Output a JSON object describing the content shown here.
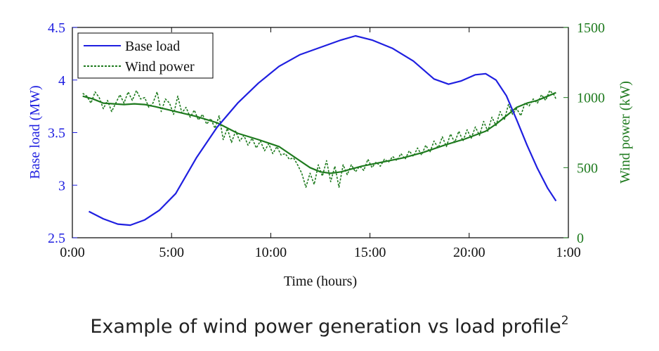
{
  "chart_data": {
    "type": "line",
    "xlabel": "Time (hours)",
    "x_ticks": [
      "0:00",
      "5:00",
      "10:00",
      "15:00",
      "20:00",
      "1:00"
    ],
    "x_range_hours": [
      0,
      24
    ],
    "y_left": {
      "label": "Base load (MW)",
      "range": [
        2.5,
        4.5
      ],
      "ticks": [
        "2.5",
        "3",
        "3.5",
        "4",
        "4.5"
      ],
      "color": "#1f1fe0"
    },
    "y_right": {
      "label": "Wind power (kW)",
      "range": [
        0,
        1500
      ],
      "ticks": [
        "0",
        "500",
        "1000",
        "1500"
      ],
      "color": "#1e7a1e"
    },
    "legend": {
      "placement": "top-left",
      "entries": [
        "Base load",
        "Wind power"
      ]
    },
    "series": [
      {
        "name": "Base load",
        "axis": "left",
        "style": "solid",
        "color": "#1f1fe0",
        "x": [
          0.8,
          1.5,
          2.2,
          2.8,
          3.5,
          4.2,
          5.0,
          6.0,
          7.0,
          8.0,
          9.0,
          10.0,
          11.0,
          12.0,
          13.0,
          13.7,
          14.5,
          15.5,
          16.5,
          17.5,
          18.2,
          18.8,
          19.5,
          20.0,
          20.5,
          21.0,
          21.5,
          22.0,
          22.5,
          23.0,
          23.4
        ],
        "values": [
          2.75,
          2.68,
          2.63,
          2.62,
          2.67,
          2.76,
          2.92,
          3.26,
          3.55,
          3.78,
          3.97,
          4.13,
          4.24,
          4.31,
          4.38,
          4.42,
          4.38,
          4.3,
          4.18,
          4.01,
          3.96,
          3.99,
          4.05,
          4.06,
          4.0,
          3.85,
          3.62,
          3.38,
          3.16,
          2.97,
          2.85
        ]
      },
      {
        "name": "Wind power",
        "axis": "right",
        "style": "dashed",
        "color": "#1e7a1e",
        "x": [
          0.5,
          0.7,
          0.9,
          1.1,
          1.3,
          1.5,
          1.7,
          1.9,
          2.1,
          2.3,
          2.5,
          2.7,
          2.9,
          3.1,
          3.3,
          3.5,
          3.7,
          3.9,
          4.1,
          4.3,
          4.5,
          4.7,
          4.9,
          5.1,
          5.3,
          5.5,
          5.7,
          5.9,
          6.1,
          6.3,
          6.5,
          6.7,
          6.9,
          7.1,
          7.3,
          7.5,
          7.7,
          7.9,
          8.1,
          8.3,
          8.5,
          8.7,
          8.9,
          9.1,
          9.3,
          9.5,
          9.7,
          9.9,
          10.1,
          10.3,
          10.5,
          10.7,
          10.9,
          11.1,
          11.3,
          11.5,
          11.7,
          11.9,
          12.1,
          12.3,
          12.5,
          12.7,
          12.9,
          13.1,
          13.3,
          13.5,
          13.7,
          13.9,
          14.1,
          14.3,
          14.5,
          14.7,
          14.9,
          15.1,
          15.3,
          15.5,
          15.7,
          15.9,
          16.1,
          16.3,
          16.5,
          16.7,
          16.9,
          17.1,
          17.3,
          17.5,
          17.7,
          17.9,
          18.1,
          18.3,
          18.5,
          18.7,
          18.9,
          19.1,
          19.3,
          19.5,
          19.7,
          19.9,
          20.1,
          20.3,
          20.5,
          20.7,
          20.9,
          21.1,
          21.3,
          21.5,
          21.7,
          21.9,
          22.1,
          22.3,
          22.5,
          22.7,
          22.9,
          23.1,
          23.3,
          23.4
        ],
        "values": [
          1030,
          1010,
          960,
          1040,
          1000,
          920,
          980,
          900,
          960,
          1020,
          960,
          1040,
          980,
          1050,
          990,
          1000,
          930,
          960,
          1040,
          900,
          990,
          960,
          880,
          1010,
          890,
          930,
          860,
          910,
          840,
          880,
          810,
          850,
          780,
          870,
          700,
          780,
          680,
          760,
          690,
          730,
          660,
          710,
          640,
          690,
          620,
          670,
          600,
          650,
          590,
          600,
          560,
          570,
          520,
          460,
          360,
          460,
          380,
          520,
          440,
          550,
          400,
          510,
          360,
          520,
          450,
          520,
          470,
          510,
          480,
          560,
          500,
          540,
          510,
          560,
          540,
          580,
          550,
          600,
          560,
          620,
          580,
          640,
          590,
          660,
          610,
          690,
          640,
          720,
          650,
          740,
          680,
          760,
          690,
          770,
          710,
          790,
          730,
          830,
          760,
          860,
          800,
          900,
          840,
          950,
          880,
          920,
          870,
          960,
          940,
          990,
          960,
          1020,
          980,
          1050,
          1020,
          990
        ]
      },
      {
        "name": "",
        "axis": "right",
        "style": "solid",
        "color": "#1e7a1e",
        "x": [
          0.5,
          1.0,
          1.5,
          2.0,
          2.5,
          3.0,
          3.5,
          4.0,
          5.0,
          6.0,
          7.0,
          8.0,
          9.0,
          10.0,
          10.5,
          11.0,
          11.5,
          12.0,
          12.5,
          13.0,
          13.5,
          14.0,
          15.0,
          16.0,
          17.0,
          18.0,
          19.0,
          20.0,
          20.5,
          21.0,
          21.5,
          22.0,
          22.5,
          23.0,
          23.4
        ],
        "values": [
          1010,
          990,
          960,
          955,
          950,
          955,
          950,
          935,
          900,
          865,
          820,
          745,
          700,
          650,
          600,
          550,
          500,
          470,
          460,
          470,
          490,
          510,
          540,
          570,
          610,
          660,
          705,
          760,
          810,
          870,
          930,
          960,
          980,
          1010,
          1035
        ]
      }
    ]
  },
  "caption": {
    "text": "Example of wind power generation vs load profile",
    "superscript": "2"
  }
}
